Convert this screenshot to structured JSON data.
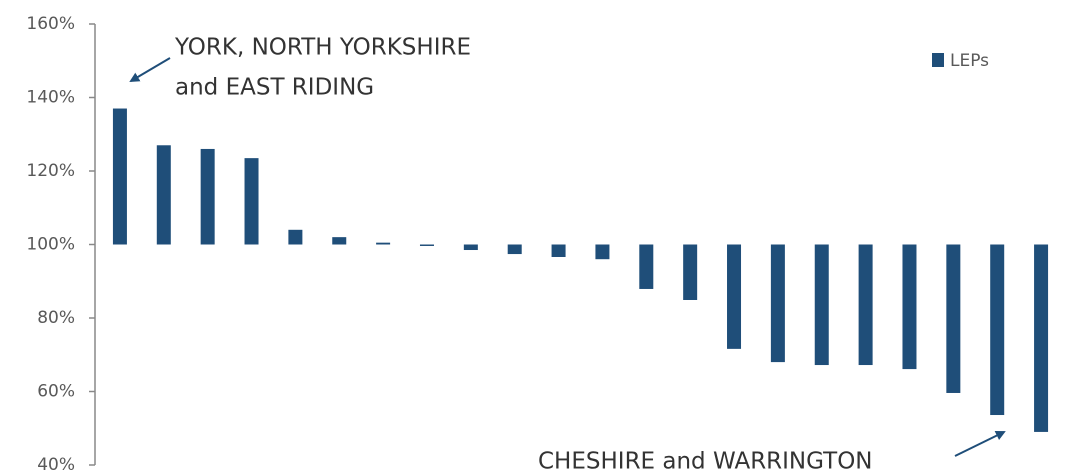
{
  "chart_data": {
    "type": "bar",
    "categories": [
      null,
      null,
      null,
      null,
      null,
      null,
      null,
      null,
      null,
      null,
      null,
      null,
      null,
      null,
      null,
      null,
      null,
      null,
      null,
      null,
      null,
      null
    ],
    "series": [
      {
        "name": "LEPs",
        "color": "#1f4e79",
        "values": [
          137,
          127,
          126,
          123.5,
          104,
          102,
          100.5,
          99.6,
          98.5,
          97.4,
          96.6,
          96,
          87.9,
          84.9,
          71.6,
          68,
          67.2,
          67.2,
          66.1,
          59.6,
          53.6,
          49
        ]
      }
    ],
    "baseline": 100,
    "ylim": [
      40,
      160
    ],
    "yticks": [
      {
        "value": 40,
        "label": "40%"
      },
      {
        "value": 60,
        "label": "60%"
      },
      {
        "value": 80,
        "label": "80%"
      },
      {
        "value": 100,
        "label": "100%"
      },
      {
        "value": 120,
        "label": "120%"
      },
      {
        "value": 140,
        "label": "140%"
      },
      {
        "value": 160,
        "label": "160%"
      }
    ],
    "grid": false,
    "legend": "upper right",
    "annotations": [
      [
        "YORK, NORTH YORKSHIRE",
        "and EAST RIDING"
      ],
      [
        "CHESHIRE and WARRINGTON"
      ]
    ]
  }
}
